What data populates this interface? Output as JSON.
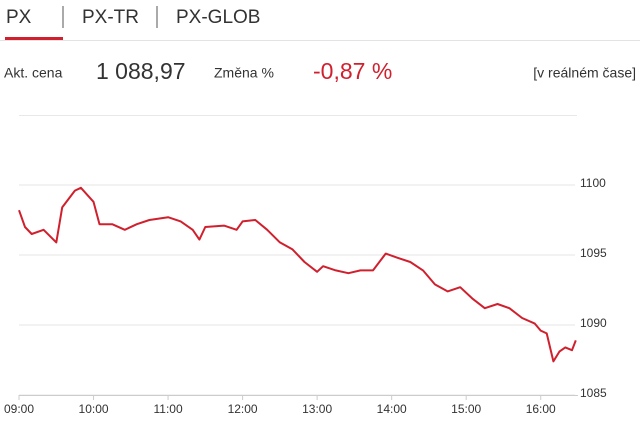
{
  "tabs": [
    "PX",
    "PX-TR",
    "PX-GLOB"
  ],
  "info": {
    "price_label": "Akt. cena",
    "price": "1 088,97",
    "change_label": "Změna %",
    "change": "-0,87 %",
    "realtime": "[v reálném čase]"
  },
  "chart_data": {
    "type": "line",
    "color": "#d0202e",
    "grid": true,
    "x": [
      9,
      9.08,
      9.17,
      9.33,
      9.5,
      9.58,
      9.75,
      9.83,
      10,
      10.08,
      10.25,
      10.42,
      10.58,
      10.75,
      11,
      11.17,
      11.33,
      11.42,
      11.5,
      11.75,
      11.92,
      12,
      12.17,
      12.33,
      12.5,
      12.67,
      12.83,
      13,
      13.08,
      13.25,
      13.42,
      13.58,
      13.75,
      13.92,
      14.08,
      14.25,
      14.42,
      14.58,
      14.75,
      14.92,
      15.08,
      15.25,
      15.42,
      15.58,
      15.75,
      15.92,
      16,
      16.08,
      16.17,
      16.25,
      16.33,
      16.42,
      16.47
    ],
    "series": [
      {
        "name": "PX",
        "values": [
          1098.2,
          1097.0,
          1096.5,
          1096.8,
          1095.9,
          1098.4,
          1099.6,
          1099.8,
          1098.8,
          1097.2,
          1097.2,
          1096.8,
          1097.2,
          1097.5,
          1097.7,
          1097.4,
          1096.8,
          1096.1,
          1097.0,
          1097.1,
          1096.8,
          1097.4,
          1097.5,
          1096.8,
          1095.9,
          1095.4,
          1094.5,
          1093.8,
          1094.2,
          1093.9,
          1093.7,
          1093.9,
          1093.9,
          1095.1,
          1094.8,
          1094.5,
          1093.9,
          1092.9,
          1092.4,
          1092.7,
          1091.9,
          1091.2,
          1091.5,
          1091.2,
          1090.5,
          1090.1,
          1089.6,
          1089.4,
          1087.4,
          1088.1,
          1088.4,
          1088.2,
          1088.9
        ]
      }
    ],
    "xlim": [
      9,
      16.5
    ],
    "ylim": [
      1085,
      1105
    ],
    "xticks": [
      {
        "value": 9,
        "label": "09:00"
      },
      {
        "value": 10,
        "label": "10:00"
      },
      {
        "value": 11,
        "label": "11:00"
      },
      {
        "value": 12,
        "label": "12:00"
      },
      {
        "value": 13,
        "label": "13:00"
      },
      {
        "value": 14,
        "label": "14:00"
      },
      {
        "value": 15,
        "label": "15:00"
      },
      {
        "value": 16,
        "label": "16:00"
      }
    ],
    "yticks": [
      1085,
      1090,
      1095,
      1100
    ]
  }
}
